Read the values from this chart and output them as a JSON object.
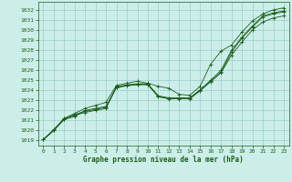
{
  "title": "Graphe pression niveau de la mer (hPa)",
  "bg_color": "#cceee8",
  "grid_color": "#99cccc",
  "line_color": "#1a5c1a",
  "marker_color": "#1a5c1a",
  "xlim": [
    -0.5,
    23.5
  ],
  "ylim": [
    1018.5,
    1032.8
  ],
  "yticks": [
    1019,
    1020,
    1021,
    1022,
    1023,
    1024,
    1025,
    1026,
    1027,
    1028,
    1029,
    1030,
    1031,
    1032
  ],
  "xticks": [
    0,
    1,
    2,
    3,
    4,
    5,
    6,
    7,
    8,
    9,
    10,
    11,
    12,
    13,
    14,
    15,
    16,
    17,
    18,
    19,
    20,
    21,
    22,
    23
  ],
  "series": [
    {
      "x": [
        0,
        1,
        2,
        3,
        4,
        5,
        6,
        7,
        8,
        9,
        10,
        11,
        12,
        13,
        14,
        15,
        16,
        17,
        18,
        19,
        20,
        21,
        22,
        23
      ],
      "y": [
        1019.1,
        1020.0,
        1021.1,
        1021.5,
        1021.8,
        1022.0,
        1022.2,
        1024.3,
        1024.5,
        1024.6,
        1024.6,
        1023.4,
        1023.2,
        1023.2,
        1023.2,
        1024.0,
        1024.9,
        1025.8,
        1027.8,
        1029.2,
        1030.3,
        1031.3,
        1031.6,
        1031.8
      ]
    },
    {
      "x": [
        0,
        1,
        2,
        3,
        4,
        5,
        6,
        7,
        8,
        9,
        10,
        11,
        12,
        13,
        14,
        15,
        16,
        17,
        18,
        19,
        20,
        21,
        22,
        23
      ],
      "y": [
        1019.1,
        1020.0,
        1021.2,
        1021.6,
        1021.9,
        1022.1,
        1022.3,
        1024.35,
        1024.55,
        1024.65,
        1024.65,
        1023.45,
        1023.25,
        1023.25,
        1023.25,
        1024.05,
        1025.0,
        1026.0,
        1028.0,
        1029.3,
        1030.4,
        1031.4,
        1031.7,
        1031.9
      ]
    },
    {
      "x": [
        0,
        1,
        2,
        3,
        4,
        5,
        6,
        7,
        8,
        9,
        10,
        11,
        12,
        13,
        14,
        15,
        16,
        17,
        18,
        19,
        20,
        21,
        22,
        23
      ],
      "y": [
        1019.1,
        1020.0,
        1021.1,
        1021.4,
        1022.0,
        1022.2,
        1022.4,
        1024.25,
        1024.45,
        1024.55,
        1024.55,
        1023.35,
        1023.15,
        1023.15,
        1023.15,
        1023.95,
        1024.85,
        1025.75,
        1027.5,
        1028.8,
        1030.0,
        1030.8,
        1031.2,
        1031.4
      ]
    },
    {
      "x": [
        0,
        1,
        2,
        3,
        4,
        5,
        6,
        7,
        8,
        9,
        10,
        11,
        12,
        13,
        14,
        15,
        16,
        17,
        18,
        19,
        20,
        21,
        22,
        23
      ],
      "y": [
        1019.1,
        1020.1,
        1021.2,
        1021.7,
        1022.2,
        1022.5,
        1022.8,
        1024.5,
        1024.7,
        1024.9,
        1024.7,
        1024.4,
        1024.2,
        1023.6,
        1023.5,
        1024.4,
        1026.6,
        1027.9,
        1028.5,
        1029.8,
        1030.9,
        1031.6,
        1032.0,
        1032.2
      ]
    }
  ]
}
